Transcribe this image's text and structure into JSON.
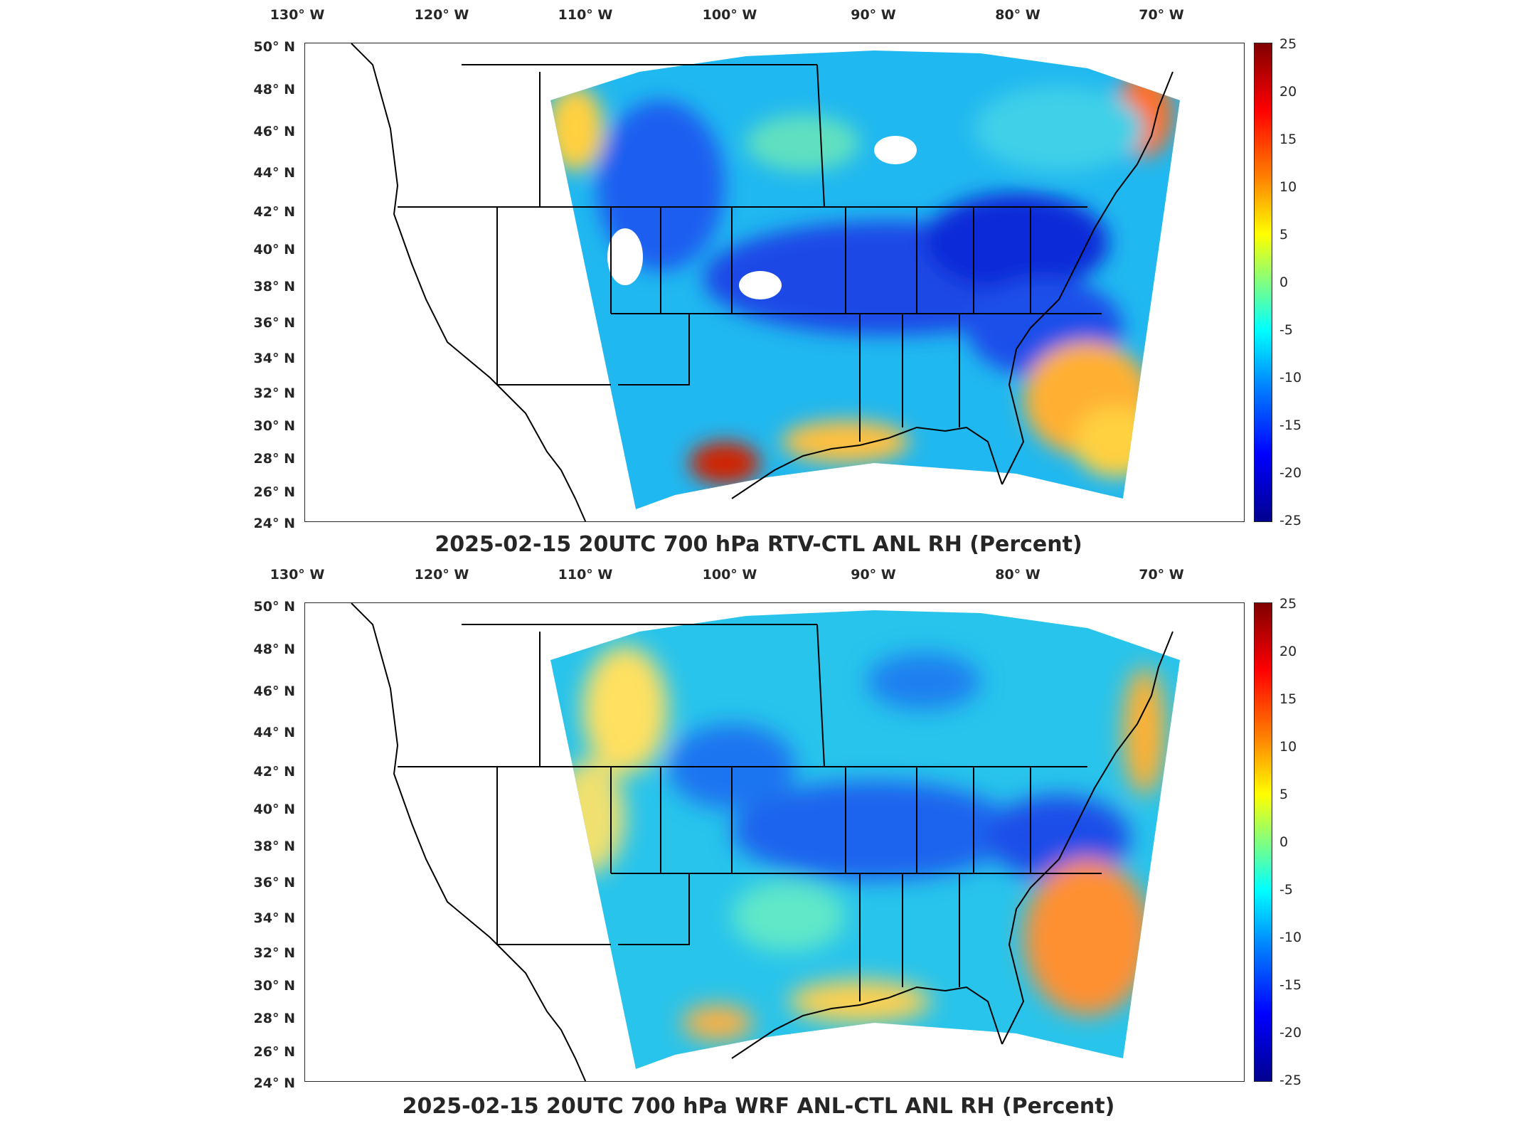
{
  "panels": [
    {
      "title": "2025-02-15 20UTC 700 hPa RTV-CTL ANL RH (Percent)",
      "lon_labels": [
        "130° W",
        "120° W",
        "110° W",
        "100° W",
        "90° W",
        "80° W",
        "70° W"
      ],
      "lat_labels": [
        "50° N",
        "48° N",
        "46° N",
        "44° N",
        "42° N",
        "40° N",
        "38° N",
        "36° N",
        "34° N",
        "32° N",
        "30° N",
        "28° N",
        "26° N",
        "24° N"
      ],
      "colorbar_ticks": [
        "25",
        "20",
        "15",
        "10",
        "5",
        "0",
        "-5",
        "-10",
        "-15",
        "-20",
        "-25"
      ]
    },
    {
      "title": "2025-02-15 20UTC 700 hPa WRF ANL-CTL ANL RH (Percent)",
      "lon_labels": [
        "130° W",
        "120° W",
        "110° W",
        "100° W",
        "90° W",
        "80° W",
        "70° W"
      ],
      "lat_labels": [
        "50° N",
        "48° N",
        "46° N",
        "44° N",
        "42° N",
        "40° N",
        "38° N",
        "36° N",
        "34° N",
        "32° N",
        "30° N",
        "28° N",
        "26° N",
        "24° N"
      ],
      "colorbar_ticks": [
        "25",
        "20",
        "15",
        "10",
        "5",
        "0",
        "-5",
        "-10",
        "-15",
        "-20",
        "-25"
      ]
    }
  ],
  "colorbar": {
    "min": -25,
    "max": 25,
    "colormap": "jet"
  },
  "map": {
    "region": "Contiguous United States",
    "projection": "Lambert conformal"
  },
  "colors": {
    "frame": "#262626",
    "coast": "#000000"
  }
}
